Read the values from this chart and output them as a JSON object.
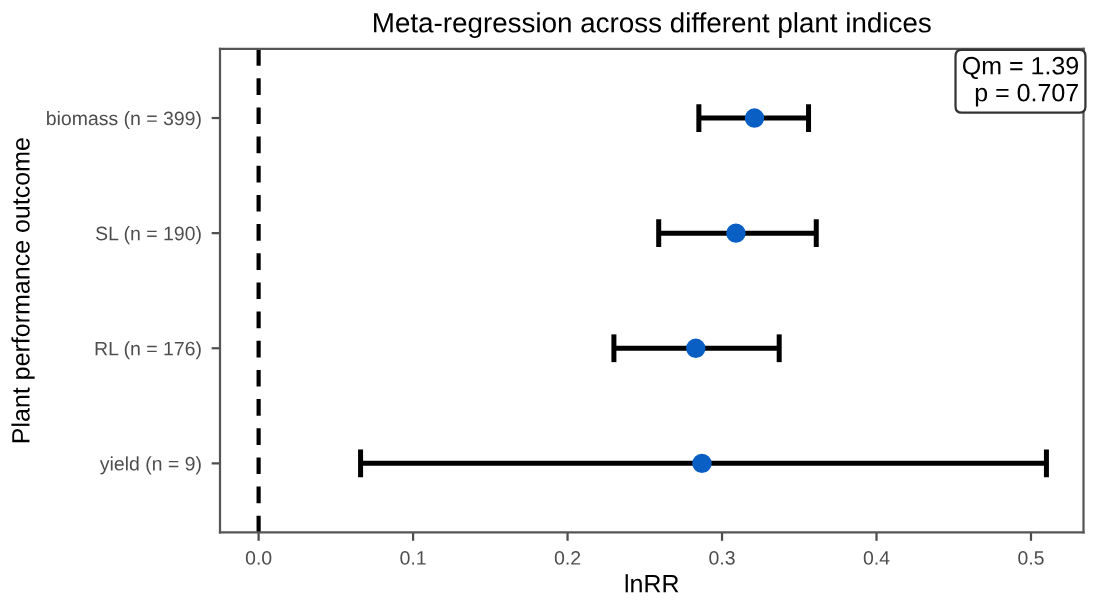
{
  "chart_data": {
    "type": "scatter",
    "orientation": "horizontal",
    "title": "Meta-regression across different plant indices",
    "xlabel": "lnRR",
    "ylabel": "Plant performance outcome",
    "categories": [
      "biomass (n = 399)",
      "SL (n = 190)",
      "RL (n = 176)",
      "yield (n = 9)"
    ],
    "values": [
      0.321,
      0.309,
      0.283,
      0.287
    ],
    "errors": [
      [
        0.285,
        0.356
      ],
      [
        0.259,
        0.361
      ],
      [
        0.23,
        0.337
      ],
      [
        0.066,
        0.51
      ]
    ],
    "color": "#0a5fc4",
    "marker": "circle",
    "xlim": [
      -0.025,
      0.534
    ],
    "xticks": [
      {
        "value": 0,
        "label": "0.0"
      },
      0.1,
      0.2,
      0.3,
      0.4,
      0.5
    ],
    "ref_lines": [
      {
        "axis": "x",
        "value": 0,
        "line_style": "dashed",
        "color": "#000000"
      }
    ],
    "annotations": [
      "Qm = 1.39\np = 0.707"
    ],
    "grid": false,
    "legend": false
  }
}
